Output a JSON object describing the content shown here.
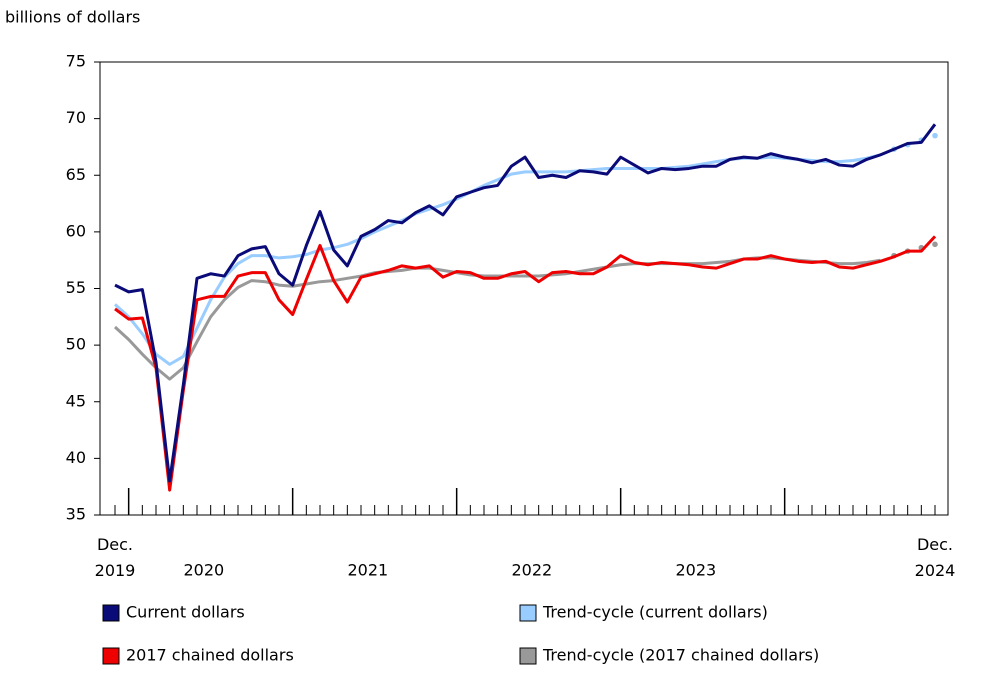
{
  "chart_data": {
    "type": "line",
    "y_axis_label": "billions of dollars",
    "categories": [
      "Dec. 2019",
      null,
      null,
      null,
      null,
      null,
      null,
      null,
      null,
      null,
      null,
      null,
      null,
      null,
      null,
      null,
      null,
      null,
      null,
      null,
      null,
      null,
      null,
      null,
      null,
      null,
      null,
      null,
      null,
      null,
      null,
      null,
      null,
      null,
      null,
      null,
      null,
      null,
      null,
      null,
      null,
      null,
      null,
      null,
      null,
      null,
      null,
      null,
      null,
      null,
      null,
      null,
      null,
      null,
      null,
      null,
      null,
      null,
      null,
      null,
      "Dec. 2024"
    ],
    "year_labels": [
      "2020",
      "2021",
      "2022",
      "2023"
    ],
    "ylim": [
      35,
      75
    ],
    "yticks": [
      35,
      40,
      45,
      50,
      55,
      60,
      65,
      70,
      75
    ],
    "series": [
      {
        "name": "Current dollars",
        "color": "#0a0a78",
        "values": [
          55.3,
          54.7,
          54.9,
          48.5,
          38.0,
          46.5,
          55.9,
          56.3,
          56.1,
          57.9,
          58.5,
          58.7,
          56.3,
          55.3,
          58.8,
          61.8,
          58.4,
          57.0,
          59.6,
          60.2,
          61.0,
          60.8,
          61.7,
          62.3,
          61.5,
          63.1,
          63.5,
          63.9,
          64.1,
          65.8,
          66.6,
          64.8,
          65.0,
          64.8,
          65.4,
          65.3,
          65.1,
          66.6,
          65.9,
          65.2,
          65.6,
          65.5,
          65.6,
          65.8,
          65.8,
          66.4,
          66.6,
          66.5,
          66.9,
          66.6,
          66.4,
          66.1,
          66.4,
          65.9,
          65.8,
          66.4,
          66.8,
          67.3,
          67.8,
          67.9,
          69.5
        ]
      },
      {
        "name": "Trend-cycle (current dollars)",
        "color": "#99ccff",
        "dotted_last": 4,
        "values": [
          53.6,
          52.5,
          51.0,
          49.2,
          48.3,
          49.0,
          51.5,
          54.0,
          56.0,
          57.2,
          57.9,
          57.9,
          57.7,
          57.8,
          58.0,
          58.4,
          58.6,
          58.9,
          59.4,
          60.0,
          60.5,
          61.0,
          61.6,
          62.0,
          62.4,
          62.9,
          63.5,
          64.1,
          64.6,
          65.1,
          65.3,
          65.3,
          65.3,
          65.3,
          65.4,
          65.5,
          65.6,
          65.6,
          65.6,
          65.6,
          65.6,
          65.7,
          65.8,
          66.0,
          66.2,
          66.4,
          66.5,
          66.5,
          66.6,
          66.5,
          66.4,
          66.3,
          66.2,
          66.2,
          66.3,
          66.5,
          66.8,
          67.3,
          67.7,
          68.1,
          68.5
        ]
      },
      {
        "name": "2017 chained dollars",
        "color": "#ee0000",
        "values": [
          53.2,
          52.3,
          52.4,
          48.0,
          37.2,
          46.0,
          54.0,
          54.3,
          54.3,
          56.1,
          56.4,
          56.4,
          54.0,
          52.7,
          55.8,
          58.8,
          55.7,
          53.8,
          56.0,
          56.3,
          56.6,
          57.0,
          56.8,
          57.0,
          56.0,
          56.5,
          56.4,
          55.9,
          55.9,
          56.3,
          56.5,
          55.6,
          56.4,
          56.5,
          56.3,
          56.3,
          56.9,
          57.9,
          57.3,
          57.1,
          57.3,
          57.2,
          57.1,
          56.9,
          56.8,
          57.2,
          57.6,
          57.6,
          57.9,
          57.6,
          57.4,
          57.3,
          57.4,
          56.9,
          56.8,
          57.1,
          57.4,
          57.8,
          58.3,
          58.3,
          59.6
        ]
      },
      {
        "name": "Trend-cycle (2017 chained dollars)",
        "color": "#999999",
        "dotted_last": 4,
        "values": [
          51.6,
          50.5,
          49.2,
          48.0,
          47.0,
          48.0,
          50.3,
          52.5,
          54.0,
          55.1,
          55.7,
          55.6,
          55.3,
          55.2,
          55.4,
          55.6,
          55.7,
          55.9,
          56.1,
          56.4,
          56.5,
          56.6,
          56.8,
          56.8,
          56.6,
          56.4,
          56.2,
          56.1,
          56.1,
          56.1,
          56.1,
          56.1,
          56.2,
          56.3,
          56.5,
          56.7,
          56.9,
          57.1,
          57.2,
          57.2,
          57.2,
          57.2,
          57.2,
          57.2,
          57.3,
          57.4,
          57.6,
          57.7,
          57.7,
          57.6,
          57.5,
          57.4,
          57.3,
          57.2,
          57.2,
          57.3,
          57.5,
          57.9,
          58.3,
          58.6,
          58.9
        ]
      }
    ]
  }
}
